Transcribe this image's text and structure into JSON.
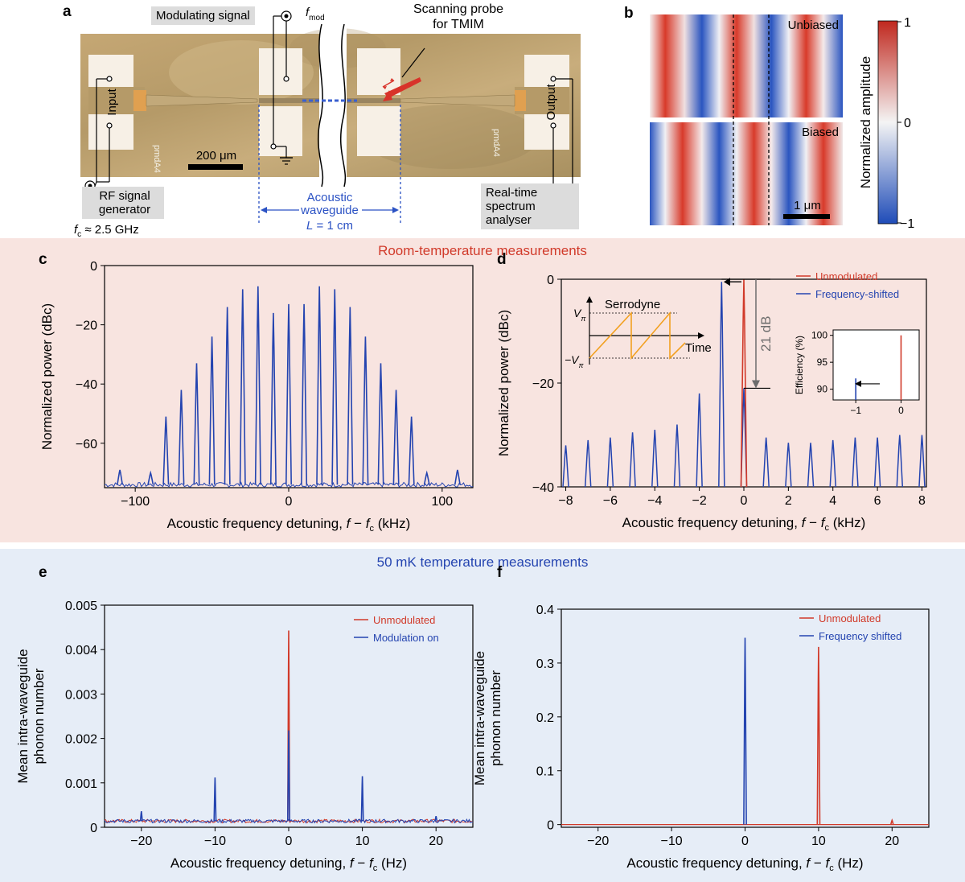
{
  "colors": {
    "room_band": "#f8e4e0",
    "cryo_band": "#e6edf7",
    "blue": "#2444b0",
    "red": "#d13a2a",
    "orange": "#f2a020",
    "grey": "#6d6d6d"
  },
  "bands": {
    "room_title": "Room-temperature measurements",
    "cryo_title": "50 mK temperature measurements"
  },
  "panel_a": {
    "label": "a",
    "modulating_signal": "Modulating signal",
    "fmod": "f",
    "fmod_sub": "mod",
    "scanning_probe": "Scanning probe",
    "for_tmim": "for TMIM",
    "input": "Input",
    "output": "Output",
    "chip_marker": "pmdA4",
    "scale_bar": "200 μm",
    "rf_line1": "RF signal",
    "rf_line2": "generator",
    "fc_prefix": "f",
    "fc_sub": "c",
    "fc_value": " ≈ 2.5 GHz",
    "waveguide_line1": "Acoustic",
    "waveguide_line2": "waveguide",
    "waveguide_L_var": "L",
    "waveguide_L_value": " = 1 cm",
    "analyser_line1": "Real-time",
    "analyser_line2": "spectrum",
    "analyser_line3": "analyser"
  },
  "panel_b": {
    "label": "b",
    "unbiased": "Unbiased",
    "biased": "Biased",
    "scale_bar": "1 μm",
    "colorbar_title": "Normalized amplitude",
    "colorbar_ticks": [
      "1",
      "0",
      "−1"
    ]
  },
  "chart_data": [
    {
      "id": "c",
      "type": "line",
      "label": "c",
      "xlabel": "Acoustic frequency detuning, f − f_c (kHz)",
      "ylabel": "Normalized power (dBc)",
      "xlim": [
        -120,
        120
      ],
      "ylim": [
        -75,
        0
      ],
      "xticks": [
        -100,
        0,
        100
      ],
      "yticks": [
        0,
        -20,
        -40,
        -60
      ],
      "xtick_labels": [
        "−100",
        "0",
        "100"
      ],
      "ytick_labels": [
        "0",
        "−20",
        "−40",
        "−60"
      ],
      "noise_floor": -74,
      "series": [
        {
          "name": "Spectrum",
          "color": "#2444b0",
          "x": [
            -110,
            -90,
            -80,
            -70,
            -60,
            -50,
            -40,
            -30,
            -20,
            -10,
            0,
            10,
            20,
            30,
            40,
            50,
            60,
            70,
            80,
            90,
            110
          ],
          "values": [
            -69,
            -70,
            -51,
            -42,
            -33,
            -24,
            -14,
            -8,
            -7,
            -16,
            -13,
            -13,
            -7,
            -8,
            -14,
            -24,
            -33,
            -42,
            -51,
            -70,
            -69
          ]
        }
      ]
    },
    {
      "id": "d",
      "type": "line",
      "label": "d",
      "xlabel": "Acoustic frequency detuning, f − f_c (kHz)",
      "ylabel": "Normalized power (dBc)",
      "xlim": [
        -8.2,
        8.2
      ],
      "ylim": [
        -40,
        0
      ],
      "xticks": [
        -8,
        -6,
        -4,
        -2,
        0,
        2,
        4,
        6,
        8
      ],
      "yticks": [
        0,
        -20,
        -40
      ],
      "xtick_labels": [
        "−8",
        "−6",
        "−4",
        "−2",
        "0",
        "2",
        "4",
        "6",
        "8"
      ],
      "ytick_labels": [
        "0",
        "−20",
        "−40"
      ],
      "legend": [
        "Unmodulated",
        "Frequency-shifted"
      ],
      "annotation": "21 dB",
      "series": [
        {
          "name": "Unmodulated",
          "color": "#d13a2a",
          "x": [
            0
          ],
          "values": [
            0
          ]
        },
        {
          "name": "Frequency-shifted",
          "color": "#2444b0",
          "x": [
            -8,
            -7,
            -6,
            -5,
            -4,
            -3,
            -2,
            -1,
            0,
            1,
            2,
            3,
            4,
            5,
            6,
            7,
            8
          ],
          "values": [
            -32,
            -31,
            -30.5,
            -29.5,
            -29,
            -28,
            -22,
            -0.5,
            -21,
            -30.5,
            -31.5,
            -31.5,
            -31,
            -30.5,
            -30.5,
            -30,
            -30
          ]
        }
      ],
      "inset_serrodyne": {
        "title": "Serrodyne",
        "v_pi": "V",
        "v_pi_sub": "π",
        "neg_v_pi": "−V",
        "time": "Time"
      },
      "inset_efficiency": {
        "ylabel": "Efficiency (%)",
        "ylim": [
          88,
          101
        ],
        "xlim": [
          -1.5,
          0.4
        ],
        "yticks": [
          100,
          95,
          90
        ],
        "xticks": [
          -1,
          0
        ],
        "ytick_labels": [
          "100",
          "95",
          "90"
        ],
        "xtick_labels": [
          "−1",
          "0"
        ],
        "unmodulated_x": 0,
        "unmodulated_value": 100,
        "shifted_x": -1,
        "shifted_value": 92
      }
    },
    {
      "id": "e",
      "type": "line",
      "label": "e",
      "xlabel": "Acoustic frequency detuning, f − f_c (Hz)",
      "ylabel": [
        "Mean intra-waveguide",
        "phonon number"
      ],
      "xlim": [
        -25,
        25
      ],
      "ylim": [
        0,
        0.005
      ],
      "xticks": [
        -20,
        -10,
        0,
        10,
        20
      ],
      "yticks": [
        0,
        0.001,
        0.002,
        0.003,
        0.004,
        0.005
      ],
      "xtick_labels": [
        "−20",
        "−10",
        "0",
        "10",
        "20"
      ],
      "ytick_labels": [
        "0",
        "0.001",
        "0.002",
        "0.003",
        "0.004",
        "0.005"
      ],
      "legend": [
        "Unmodulated",
        "Modulation on"
      ],
      "noise_floor": 0.00014,
      "series": [
        {
          "name": "Unmodulated",
          "color": "#d13a2a",
          "x": [
            0
          ],
          "values": [
            0.00443
          ]
        },
        {
          "name": "Modulation on",
          "color": "#2444b0",
          "x": [
            -20,
            -10,
            0,
            10,
            20
          ],
          "values": [
            0.00036,
            0.00112,
            0.00218,
            0.00115,
            0.00025
          ]
        }
      ]
    },
    {
      "id": "f",
      "type": "line",
      "label": "f",
      "xlabel": "Acoustic frequency detuning, f − f_c (Hz)",
      "ylabel": [
        "Mean intra-waveguide",
        "phonon number"
      ],
      "xlim": [
        -25,
        25
      ],
      "ylim": [
        -0.005,
        0.4
      ],
      "xticks": [
        -20,
        -10,
        0,
        10,
        20
      ],
      "yticks": [
        0,
        0.1,
        0.2,
        0.3,
        0.4
      ],
      "xtick_labels": [
        "−20",
        "−10",
        "0",
        "10",
        "20"
      ],
      "ytick_labels": [
        "0",
        "0.1",
        "0.2",
        "0.3",
        "0.4"
      ],
      "legend": [
        "Unmodulated",
        "Frequency shifted"
      ],
      "series": [
        {
          "name": "Unmodulated",
          "color": "#d13a2a",
          "x": [
            10,
            20
          ],
          "values": [
            0.33,
            0.008
          ]
        },
        {
          "name": "Frequency shifted",
          "color": "#2444b0",
          "x": [
            0
          ],
          "values": [
            0.347
          ]
        }
      ]
    }
  ]
}
